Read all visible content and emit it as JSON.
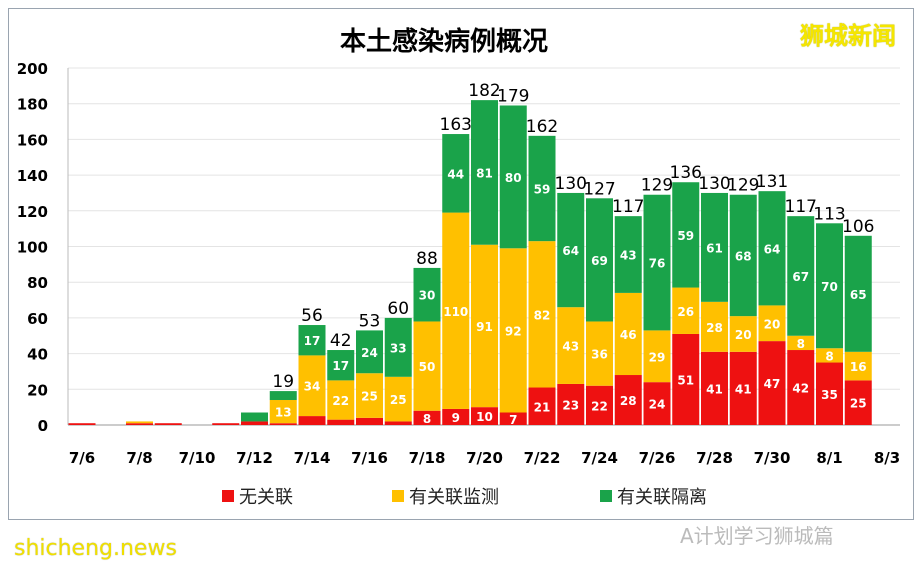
{
  "chart_data": {
    "type": "bar",
    "stacked": true,
    "title": "本土感染病例概况",
    "categories": [
      "7/6",
      "7/7",
      "7/8",
      "7/9",
      "7/10",
      "7/11",
      "7/12",
      "7/13",
      "7/14",
      "7/15",
      "7/16",
      "7/17",
      "7/18",
      "7/19",
      "7/20",
      "7/21",
      "7/22",
      "7/23",
      "7/24",
      "7/25",
      "7/26",
      "7/27",
      "7/28",
      "7/29",
      "7/30",
      "7/31",
      "8/1",
      "8/2"
    ],
    "xticks": [
      "7/6",
      "7/8",
      "7/10",
      "7/12",
      "7/14",
      "7/16",
      "7/18",
      "7/20",
      "7/22",
      "7/24",
      "7/26",
      "7/28",
      "7/30",
      "8/1",
      "8/3"
    ],
    "yticks": [
      0,
      20,
      40,
      60,
      80,
      100,
      120,
      140,
      160,
      180,
      200
    ],
    "ylim": [
      0,
      200
    ],
    "series": [
      {
        "name": "无关联",
        "color": "#ee1111",
        "values": [
          1,
          0,
          1,
          1,
          0,
          1,
          2,
          1,
          5,
          3,
          4,
          2,
          8,
          9,
          10,
          7,
          21,
          23,
          22,
          28,
          24,
          51,
          41,
          41,
          47,
          42,
          35,
          25
        ]
      },
      {
        "name": "有关联监测",
        "color": "#ffc000",
        "values": [
          0,
          0,
          1,
          0,
          0,
          0,
          0,
          13,
          34,
          22,
          25,
          25,
          50,
          110,
          91,
          92,
          82,
          43,
          36,
          46,
          29,
          26,
          28,
          20,
          20,
          8,
          8,
          16
        ]
      },
      {
        "name": "有关联隔离",
        "color": "#1aa34a",
        "values": [
          0,
          0,
          0,
          0,
          0,
          0,
          5,
          5,
          17,
          17,
          24,
          33,
          30,
          44,
          81,
          80,
          59,
          64,
          69,
          43,
          76,
          59,
          61,
          68,
          64,
          67,
          70,
          65
        ]
      }
    ],
    "totals": [
      null,
      null,
      null,
      null,
      null,
      null,
      null,
      19,
      56,
      42,
      53,
      60,
      88,
      163,
      182,
      179,
      162,
      130,
      127,
      117,
      129,
      136,
      130,
      129,
      131,
      117,
      113,
      106
    ],
    "legend": "bottom",
    "grid": true
  },
  "watermark": "狮城新闻",
  "footer": {
    "left": "shicheng.news",
    "right": "A计划学习狮城篇"
  }
}
